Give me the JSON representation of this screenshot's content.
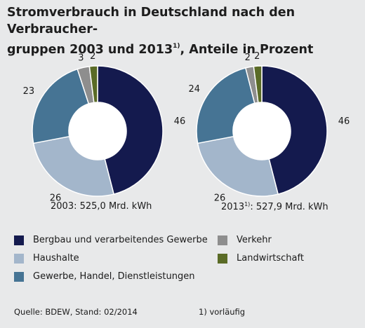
{
  "title_line1": "Stromverbrauch in Deutschland nach den Verbraucher-",
  "title_line2_a": "gruppen 2003 und 2013",
  "title_line2_sup": "1)",
  "title_line2_b": ", Anteile in Prozent",
  "colors": {
    "bergbau": "#141a4e",
    "haushalte": "#a3b6cb",
    "gewerbe": "#467494",
    "verkehr": "#8e8e8e",
    "landwirtschaft": "#5a6b26",
    "background": "#e8e9ea"
  },
  "chart_data": [
    {
      "type": "pie",
      "donut": true,
      "caption_year": "2003",
      "caption_sup": "",
      "caption_rest": ": 525,0 Mrd. kWh",
      "categories": [
        "Bergbau und verarbeitendes Gewerbe",
        "Haushalte",
        "Gewerbe, Handel, Dienstleistungen",
        "Verkehr",
        "Landwirtschaft"
      ],
      "values": [
        46,
        26,
        23,
        3,
        2
      ],
      "labels": [
        "46",
        "26",
        "23",
        "3",
        "2"
      ]
    },
    {
      "type": "pie",
      "donut": true,
      "caption_year": "2013",
      "caption_sup": "1)",
      "caption_rest": ": 527,9 Mrd. kWh",
      "categories": [
        "Bergbau und verarbeitendes Gewerbe",
        "Haushalte",
        "Gewerbe, Handel, Dienstleistungen",
        "Verkehr",
        "Landwirtschaft"
      ],
      "values": [
        46,
        26,
        24,
        2,
        2
      ],
      "labels": [
        "46",
        "26",
        "24",
        "2",
        "2"
      ]
    }
  ],
  "legend": [
    {
      "label": "Bergbau und verarbeitendes Gewerbe",
      "color": "#141a4e"
    },
    {
      "label": "Haushalte",
      "color": "#a3b6cb"
    },
    {
      "label": "Gewerbe, Handel, Dienstleistungen",
      "color": "#467494"
    },
    {
      "label": "Verkehr",
      "color": "#8e8e8e"
    },
    {
      "label": "Landwirtschaft",
      "color": "#5a6b26"
    }
  ],
  "footer": {
    "source": "Quelle: BDEW, Stand: 02/2014",
    "note": "1) vorläufig"
  }
}
